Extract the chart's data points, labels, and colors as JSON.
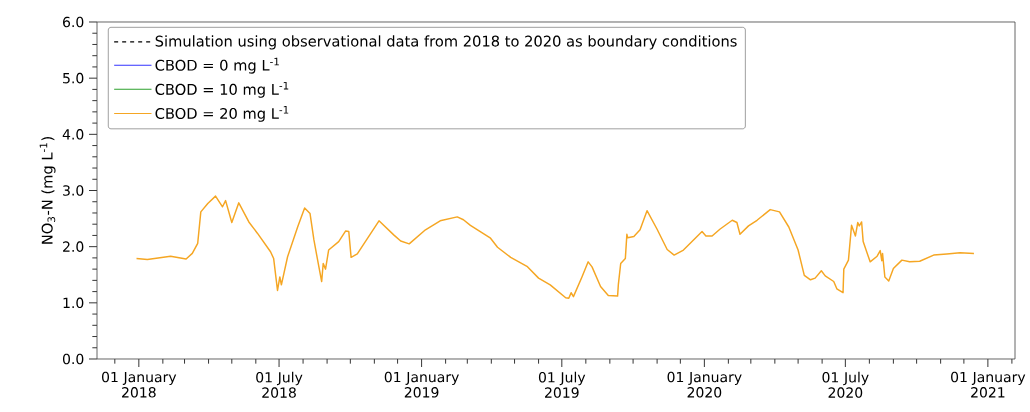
{
  "chart_data": {
    "type": "line",
    "ylabel": "NO$_{3}$-N (mg L$^{-1}$)",
    "legend": "top left",
    "marker": "none",
    "xlim": [
      "2017-11-08",
      "2021-02-05"
    ],
    "xticks": [
      {
        "value": "2017-12-01",
        "label": null
      },
      {
        "value": "2018-01-01",
        "label": "01 January 2018"
      },
      {
        "value": "2018-02-01",
        "label": null
      },
      {
        "value": "2018-03-01",
        "label": null
      },
      {
        "value": "2018-04-01",
        "label": null
      },
      {
        "value": "2018-05-01",
        "label": null
      },
      {
        "value": "2018-06-01",
        "label": null
      },
      {
        "value": "2018-07-01",
        "label": "01 July 2018"
      },
      {
        "value": "2018-08-01",
        "label": null
      },
      {
        "value": "2018-09-01",
        "label": null
      },
      {
        "value": "2018-10-01",
        "label": null
      },
      {
        "value": "2018-11-01",
        "label": null
      },
      {
        "value": "2018-12-01",
        "label": null
      },
      {
        "value": "2019-01-01",
        "label": "01 January 2019"
      },
      {
        "value": "2019-02-01",
        "label": null
      },
      {
        "value": "2019-03-01",
        "label": null
      },
      {
        "value": "2019-04-01",
        "label": null
      },
      {
        "value": "2019-05-01",
        "label": null
      },
      {
        "value": "2019-06-01",
        "label": null
      },
      {
        "value": "2019-07-01",
        "label": "01 July 2019"
      },
      {
        "value": "2019-08-01",
        "label": null
      },
      {
        "value": "2019-09-01",
        "label": null
      },
      {
        "value": "2019-10-01",
        "label": null
      },
      {
        "value": "2019-11-01",
        "label": null
      },
      {
        "value": "2019-12-01",
        "label": null
      },
      {
        "value": "2020-01-01",
        "label": "01 January 2020"
      },
      {
        "value": "2020-02-01",
        "label": null
      },
      {
        "value": "2020-03-01",
        "label": null
      },
      {
        "value": "2020-04-01",
        "label": null
      },
      {
        "value": "2020-05-01",
        "label": null
      },
      {
        "value": "2020-06-01",
        "label": null
      },
      {
        "value": "2020-07-01",
        "label": "01 July 2020"
      },
      {
        "value": "2020-08-01",
        "label": null
      },
      {
        "value": "2020-09-01",
        "label": null
      },
      {
        "value": "2020-10-01",
        "label": null
      },
      {
        "value": "2020-11-01",
        "label": null
      },
      {
        "value": "2020-12-01",
        "label": null
      },
      {
        "value": "2021-01-01",
        "label": "01 January 2021"
      },
      {
        "value": "2021-02-01",
        "label": null
      }
    ],
    "ylim": [
      0,
      6
    ],
    "yticks": [
      {
        "value": 0,
        "label": "0.0"
      },
      {
        "value": 0.2,
        "label": null
      },
      {
        "value": 0.4,
        "label": null
      },
      {
        "value": 0.6,
        "label": null
      },
      {
        "value": 0.8,
        "label": null
      },
      {
        "value": 1,
        "label": "1.0"
      },
      {
        "value": 1.2,
        "label": null
      },
      {
        "value": 1.4,
        "label": null
      },
      {
        "value": 1.6,
        "label": null
      },
      {
        "value": 1.8,
        "label": null
      },
      {
        "value": 2,
        "label": "2.0"
      },
      {
        "value": 2.2,
        "label": null
      },
      {
        "value": 2.4,
        "label": null
      },
      {
        "value": 2.6,
        "label": null
      },
      {
        "value": 2.8,
        "label": null
      },
      {
        "value": 3,
        "label": "3.0"
      },
      {
        "value": 3.2,
        "label": null
      },
      {
        "value": 3.4,
        "label": null
      },
      {
        "value": 3.6,
        "label": null
      },
      {
        "value": 3.8,
        "label": null
      },
      {
        "value": 4,
        "label": "4.0"
      },
      {
        "value": 4.2,
        "label": null
      },
      {
        "value": 4.4,
        "label": null
      },
      {
        "value": 4.6,
        "label": null
      },
      {
        "value": 4.8,
        "label": null
      },
      {
        "value": 5,
        "label": "5.0"
      },
      {
        "value": 5.2,
        "label": null
      },
      {
        "value": 5.4,
        "label": null
      },
      {
        "value": 5.6,
        "label": null
      },
      {
        "value": 5.8,
        "label": null
      },
      {
        "value": 6,
        "label": "6.0"
      }
    ],
    "x": [
      "2017-12-29",
      "2018-01-12",
      "2018-02-11",
      "2018-03-03",
      "2018-03-11",
      "2018-03-18",
      "2018-03-22",
      "2018-03-31",
      "2018-04-10",
      "2018-04-19",
      "2018-04-23",
      "2018-05-01",
      "2018-05-10",
      "2018-05-23",
      "2018-06-03",
      "2018-06-20",
      "2018-06-24",
      "2018-06-29",
      "2018-07-02",
      "2018-07-04",
      "2018-07-12",
      "2018-07-25",
      "2018-08-03",
      "2018-08-10",
      "2018-08-15",
      "2018-08-21",
      "2018-08-25",
      "2018-08-27",
      "2018-08-30",
      "2018-09-03",
      "2018-09-16",
      "2018-09-25",
      "2018-09-29",
      "2018-10-02",
      "2018-10-10",
      "2018-11-07",
      "2018-11-26",
      "2018-12-05",
      "2018-12-16",
      "2019-01-06",
      "2019-01-25",
      "2019-02-16",
      "2019-02-24",
      "2019-03-05",
      "2019-03-31",
      "2019-04-09",
      "2019-04-26",
      "2019-05-17",
      "2019-06-01",
      "2019-06-16",
      "2019-07-06",
      "2019-07-10",
      "2019-07-13",
      "2019-07-16",
      "2019-07-27",
      "2019-08-04",
      "2019-08-09",
      "2019-08-20",
      "2019-08-30",
      "2019-09-11",
      "2019-09-12",
      "2019-09-15",
      "2019-09-21",
      "2019-09-23",
      "2019-09-24",
      "2019-10-02",
      "2019-10-10",
      "2019-10-19",
      "2019-11-01",
      "2019-11-14",
      "2019-11-23",
      "2019-12-05",
      "2019-12-18",
      "2019-12-29",
      "2020-01-03",
      "2020-01-11",
      "2020-01-21",
      "2020-02-06",
      "2020-02-12",
      "2020-02-16",
      "2020-02-27",
      "2020-03-09",
      "2020-03-26",
      "2020-04-07",
      "2020-04-19",
      "2020-05-01",
      "2020-05-09",
      "2020-05-17",
      "2020-05-23",
      "2020-05-31",
      "2020-06-05",
      "2020-06-16",
      "2020-06-20",
      "2020-06-28",
      "2020-06-29",
      "2020-07-05",
      "2020-07-09",
      "2020-07-14",
      "2020-07-17",
      "2020-07-19",
      "2020-07-22",
      "2020-07-24",
      "2020-08-02",
      "2020-08-11",
      "2020-08-15",
      "2020-08-17",
      "2020-08-18",
      "2020-08-21",
      "2020-08-26",
      "2020-09-01",
      "2020-09-12",
      "2020-09-22",
      "2020-10-05",
      "2020-10-23",
      "2020-11-09",
      "2020-11-26",
      "2020-12-14"
    ],
    "series": [
      {
        "name": "Simulation using observational data from 2018 to 2020 as boundary conditions",
        "color": "#000000",
        "line_style": "dashed",
        "values": [
          null,
          null,
          null,
          null,
          null,
          null,
          null,
          null,
          null,
          null,
          null,
          null,
          null,
          null,
          null,
          null,
          null,
          null,
          null,
          null,
          null,
          null,
          null,
          null,
          null,
          null,
          null,
          null,
          null,
          null,
          null,
          null,
          null,
          null,
          null,
          null,
          null,
          null,
          null,
          null,
          null,
          null,
          null,
          null,
          null,
          null,
          null,
          null,
          null,
          null,
          null,
          null,
          null,
          null,
          null,
          null,
          null,
          null,
          null,
          null,
          null,
          null,
          null,
          null,
          null,
          null,
          null,
          null,
          null,
          null,
          null,
          null,
          null,
          null,
          null,
          null,
          null,
          null,
          null,
          null,
          null,
          null,
          null,
          null,
          null,
          null,
          null,
          null,
          null,
          null,
          null,
          null,
          null,
          null,
          null,
          null,
          null,
          null,
          null,
          null,
          null,
          null,
          null,
          null,
          null,
          null,
          null,
          null,
          null,
          null,
          null,
          null,
          null,
          null,
          null,
          null,
          null
        ]
      },
      {
        "name": "CBOD = 0 mg L$^{-1}$",
        "color": "#3333ff",
        "line_style": "solid",
        "values": [
          null,
          null,
          null,
          null,
          null,
          null,
          null,
          null,
          null,
          null,
          null,
          null,
          null,
          null,
          null,
          null,
          null,
          null,
          null,
          null,
          null,
          null,
          null,
          null,
          null,
          null,
          null,
          null,
          null,
          null,
          null,
          null,
          null,
          null,
          null,
          null,
          null,
          null,
          null,
          null,
          null,
          null,
          null,
          null,
          null,
          null,
          null,
          null,
          null,
          null,
          null,
          null,
          null,
          null,
          null,
          null,
          null,
          null,
          null,
          null,
          null,
          null,
          null,
          null,
          null,
          null,
          null,
          null,
          null,
          null,
          null,
          null,
          null,
          null,
          null,
          null,
          null,
          null,
          null,
          null,
          null,
          null,
          null,
          null,
          null,
          null,
          null,
          null,
          null,
          null,
          null,
          null,
          null,
          null,
          null,
          null,
          null,
          null,
          null,
          null,
          null,
          null,
          null,
          null,
          null,
          null,
          null,
          null,
          null,
          null,
          null,
          null,
          null,
          null,
          null,
          null,
          null
        ]
      },
      {
        "name": "CBOD = 10 mg L$^{-1}$",
        "color": "#2ca02c",
        "line_style": "solid",
        "values": [
          null,
          null,
          null,
          null,
          null,
          null,
          null,
          null,
          null,
          null,
          null,
          null,
          null,
          null,
          null,
          null,
          null,
          null,
          null,
          null,
          null,
          null,
          null,
          null,
          null,
          null,
          null,
          null,
          null,
          null,
          null,
          null,
          null,
          null,
          null,
          null,
          null,
          null,
          null,
          null,
          null,
          null,
          null,
          null,
          null,
          null,
          null,
          null,
          null,
          null,
          null,
          null,
          null,
          null,
          null,
          null,
          null,
          null,
          null,
          null,
          null,
          null,
          null,
          null,
          null,
          null,
          null,
          null,
          null,
          null,
          null,
          null,
          null,
          null,
          null,
          null,
          null,
          null,
          null,
          null,
          null,
          null,
          null,
          null,
          null,
          null,
          null,
          null,
          null,
          null,
          null,
          null,
          null,
          null,
          null,
          null,
          null,
          null,
          null,
          null,
          null,
          null,
          null,
          null,
          null,
          null,
          null,
          null,
          null,
          null,
          null,
          null,
          null,
          null,
          null,
          null,
          null
        ]
      },
      {
        "name": "CBOD = 20 mg L$^{-1}$",
        "color": "#f5a623",
        "line_style": "solid",
        "values": [
          1.79,
          1.77,
          1.83,
          1.78,
          1.88,
          2.06,
          2.62,
          2.77,
          2.9,
          2.71,
          2.82,
          2.43,
          2.78,
          2.44,
          2.24,
          1.91,
          1.79,
          1.22,
          1.46,
          1.32,
          1.82,
          2.35,
          2.69,
          2.59,
          2.12,
          1.67,
          1.38,
          1.7,
          1.6,
          1.94,
          2.09,
          2.28,
          2.27,
          1.81,
          1.87,
          2.46,
          2.21,
          2.1,
          2.05,
          2.3,
          2.46,
          2.53,
          2.48,
          2.38,
          2.15,
          1.99,
          1.81,
          1.65,
          1.44,
          1.32,
          1.09,
          1.08,
          1.18,
          1.11,
          1.46,
          1.73,
          1.64,
          1.29,
          1.13,
          1.12,
          1.33,
          1.7,
          1.79,
          2.22,
          2.16,
          2.18,
          2.3,
          2.64,
          2.31,
          1.95,
          1.85,
          1.94,
          2.12,
          2.27,
          2.19,
          2.19,
          2.31,
          2.47,
          2.43,
          2.22,
          2.37,
          2.47,
          2.66,
          2.62,
          2.35,
          1.94,
          1.49,
          1.41,
          1.44,
          1.57,
          1.48,
          1.38,
          1.25,
          1.18,
          1.6,
          1.76,
          2.38,
          2.19,
          2.43,
          2.37,
          2.44,
          2.09,
          1.73,
          1.83,
          1.93,
          1.75,
          1.88,
          1.46,
          1.39,
          1.61,
          1.76,
          1.73,
          1.74,
          1.85,
          1.87,
          1.89,
          1.88
        ]
      }
    ]
  }
}
